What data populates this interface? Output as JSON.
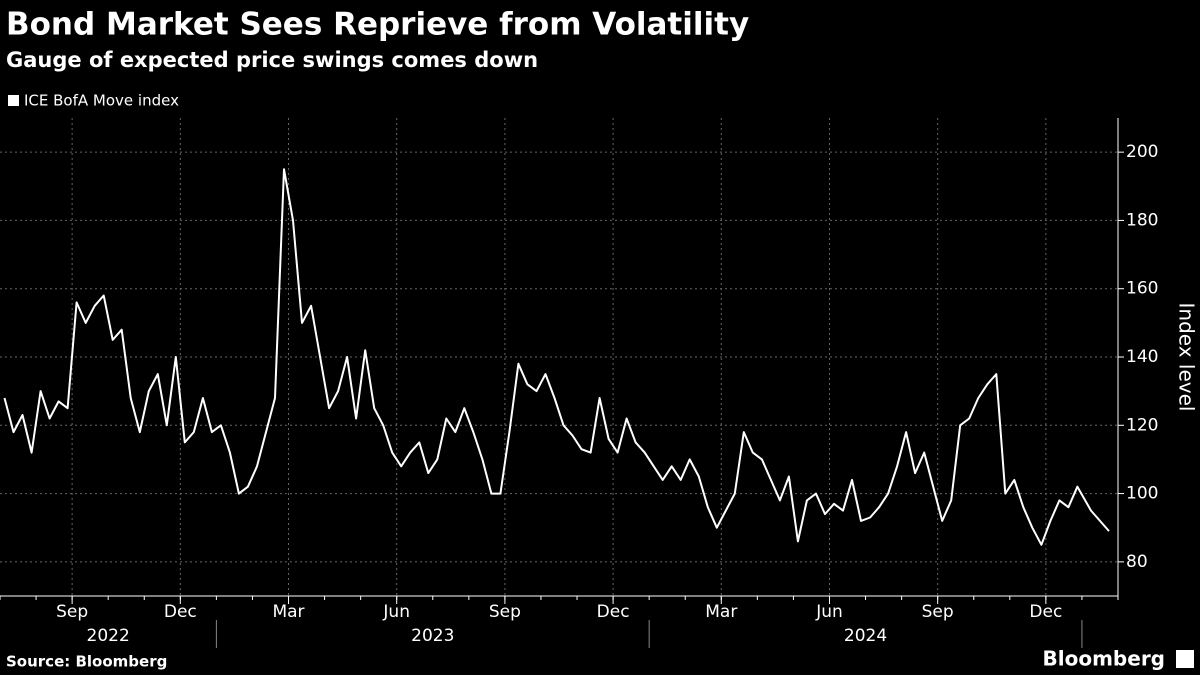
{
  "chart_data": {
    "type": "line",
    "title": "Bond Market Sees Reprieve from Volatility",
    "subtitle": "Gauge of expected price swings comes down",
    "y_label": "Index level",
    "source": "Source: Bloomberg",
    "brand": "Bloomberg",
    "x": [
      "2022-07",
      "2022-07",
      "2022-07",
      "2022-07",
      "2022-08",
      "2022-08",
      "2022-08",
      "2022-08",
      "2022-09",
      "2022-09",
      "2022-09",
      "2022-09",
      "2022-10",
      "2022-10",
      "2022-10",
      "2022-10",
      "2022-11",
      "2022-11",
      "2022-11",
      "2022-11",
      "2022-12",
      "2022-12",
      "2022-12",
      "2022-12",
      "2023-01",
      "2023-01",
      "2023-01",
      "2023-01",
      "2023-02",
      "2023-02",
      "2023-02",
      "2023-02",
      "2023-03",
      "2023-03",
      "2023-03",
      "2023-03",
      "2023-04",
      "2023-04",
      "2023-04",
      "2023-04",
      "2023-05",
      "2023-05",
      "2023-05",
      "2023-05",
      "2023-06",
      "2023-06",
      "2023-06",
      "2023-06",
      "2023-07",
      "2023-07",
      "2023-07",
      "2023-07",
      "2023-08",
      "2023-08",
      "2023-08",
      "2023-08",
      "2023-09",
      "2023-09",
      "2023-09",
      "2023-09",
      "2023-10",
      "2023-10",
      "2023-10",
      "2023-10",
      "2023-11",
      "2023-11",
      "2023-11",
      "2023-11",
      "2023-12",
      "2023-12",
      "2023-12",
      "2023-12",
      "2024-01",
      "2024-01",
      "2024-01",
      "2024-01",
      "2024-02",
      "2024-02",
      "2024-02",
      "2024-02",
      "2024-03",
      "2024-03",
      "2024-03",
      "2024-03",
      "2024-04",
      "2024-04",
      "2024-04",
      "2024-04",
      "2024-05",
      "2024-05",
      "2024-05",
      "2024-05",
      "2024-06",
      "2024-06",
      "2024-06",
      "2024-06",
      "2024-07",
      "2024-07",
      "2024-07",
      "2024-07",
      "2024-08",
      "2024-08",
      "2024-08",
      "2024-08",
      "2024-09",
      "2024-09",
      "2024-09",
      "2024-09",
      "2024-10",
      "2024-10",
      "2024-10",
      "2024-10",
      "2024-11",
      "2024-11",
      "2024-11",
      "2024-11",
      "2024-12",
      "2024-12",
      "2024-12",
      "2024-12",
      "2025-01",
      "2025-01"
    ],
    "series": [
      {
        "name": "ICE BofA Move index",
        "color": "#ffffff",
        "values": [
          128,
          118,
          123,
          112,
          130,
          122,
          127,
          125,
          156,
          150,
          155,
          158,
          145,
          148,
          128,
          118,
          130,
          135,
          120,
          140,
          115,
          118,
          128,
          118,
          120,
          112,
          100,
          102,
          108,
          118,
          128,
          195,
          180,
          150,
          155,
          140,
          125,
          130,
          140,
          122,
          142,
          125,
          120,
          112,
          108,
          112,
          115,
          106,
          110,
          122,
          118,
          125,
          118,
          110,
          100,
          100,
          118,
          138,
          132,
          130,
          135,
          128,
          120,
          117,
          113,
          112,
          128,
          116,
          112,
          122,
          115,
          112,
          108,
          104,
          108,
          104,
          110,
          105,
          96,
          90,
          95,
          100,
          118,
          112,
          110,
          104,
          98,
          105,
          86,
          98,
          100,
          94,
          97,
          95,
          104,
          92,
          93,
          96,
          100,
          108,
          118,
          106,
          112,
          102,
          92,
          98,
          120,
          122,
          128,
          132,
          135,
          100,
          104,
          96,
          90,
          85,
          92,
          98,
          96,
          102,
          95,
          89
        ]
      }
    ],
    "xlim": [
      "2022-07",
      "2025-02"
    ],
    "xticks": [
      {
        "value": "2022-09",
        "label": "Sep"
      },
      {
        "value": "2022-12",
        "label": "Dec"
      },
      {
        "value": "2023-03",
        "label": "Mar"
      },
      {
        "value": "2023-06",
        "label": "Jun"
      },
      {
        "value": "2023-09",
        "label": "Sep"
      },
      {
        "value": "2023-12",
        "label": "Dec"
      },
      {
        "value": "2024-03",
        "label": "Mar"
      },
      {
        "value": "2024-06",
        "label": "Jun"
      },
      {
        "value": "2024-09",
        "label": "Sep"
      },
      {
        "value": "2024-12",
        "label": "Dec"
      }
    ],
    "years": [
      "2022",
      "2023",
      "2024"
    ],
    "ylim": [
      70,
      210
    ],
    "yticks": [
      80,
      100,
      120,
      140,
      160,
      180,
      200
    ],
    "grid": true
  }
}
